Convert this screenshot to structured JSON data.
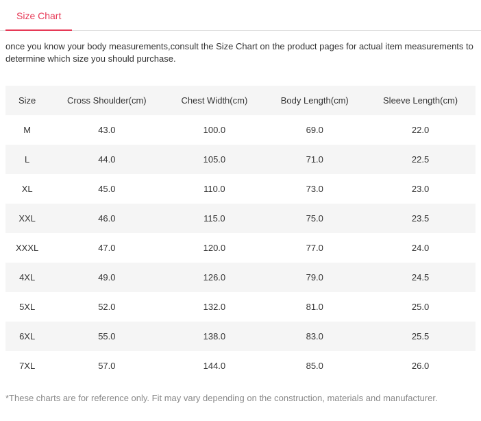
{
  "tab": {
    "label": "Size Chart"
  },
  "description": "once you know your body measurements,consult the Size Chart on the product pages for actual item measurements to determine which size you should purchase.",
  "table": {
    "columns": [
      "Size",
      "Cross Shoulder(cm)",
      "Chest Width(cm)",
      "Body Length(cm)",
      "Sleeve Length(cm)"
    ],
    "rows": [
      [
        "M",
        "43.0",
        "100.0",
        "69.0",
        "22.0"
      ],
      [
        "L",
        "44.0",
        "105.0",
        "71.0",
        "22.5"
      ],
      [
        "XL",
        "45.0",
        "110.0",
        "73.0",
        "23.0"
      ],
      [
        "XXL",
        "46.0",
        "115.0",
        "75.0",
        "23.5"
      ],
      [
        "XXXL",
        "47.0",
        "120.0",
        "77.0",
        "24.0"
      ],
      [
        "4XL",
        "49.0",
        "126.0",
        "79.0",
        "24.5"
      ],
      [
        "5XL",
        "52.0",
        "132.0",
        "81.0",
        "25.0"
      ],
      [
        "6XL",
        "55.0",
        "138.0",
        "83.0",
        "25.5"
      ],
      [
        "7XL",
        "57.0",
        "144.0",
        "85.0",
        "26.0"
      ]
    ],
    "header_bg": "#f5f5f5",
    "row_alt_bg": "#f5f5f5",
    "text_color": "#333333",
    "font_size": 13
  },
  "footnote": "*These charts are for reference only. Fit may vary depending on the construction, materials and manufacturer.",
  "colors": {
    "accent": "#e63956",
    "border": "#e0e0e0",
    "muted_text": "#888888",
    "background": "#ffffff"
  }
}
